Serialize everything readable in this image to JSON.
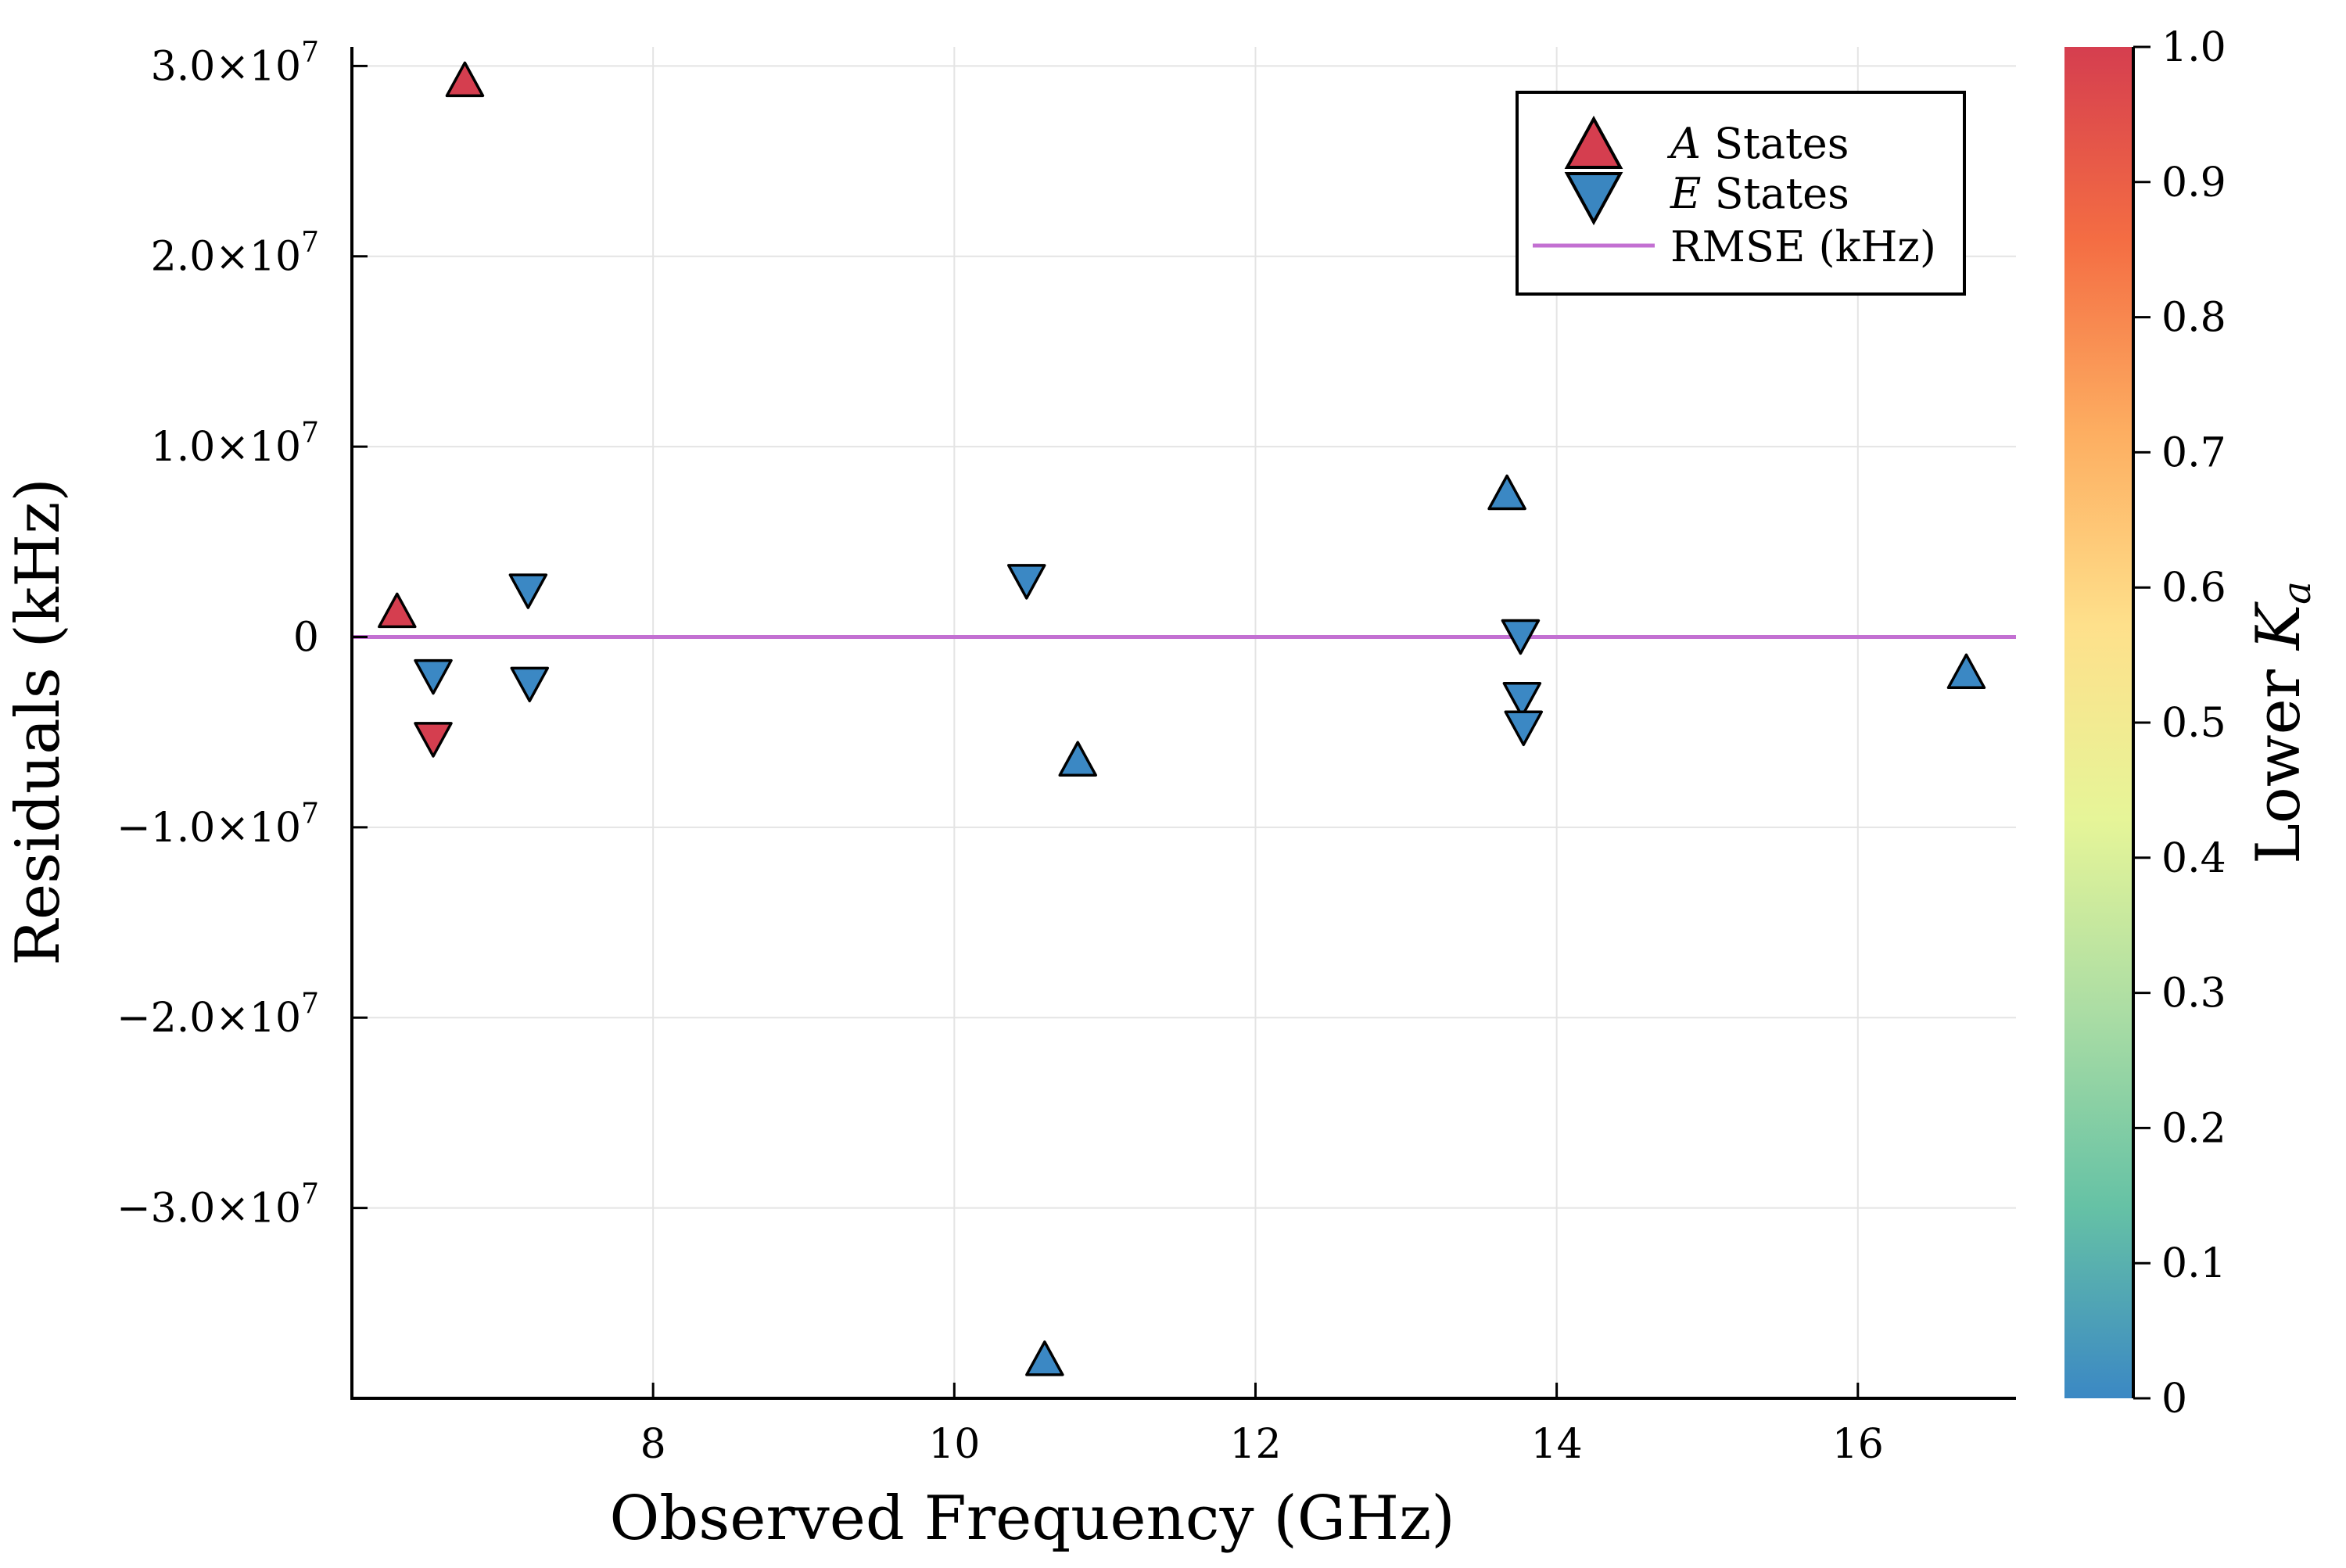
{
  "chart_data": {
    "type": "scatter",
    "title": "",
    "xlabel": "Observed Frequency (GHz)",
    "ylabel": "Residuals (kHz)",
    "xlim": [
      6.0,
      17.05
    ],
    "ylim": [
      -40000000,
      31000000
    ],
    "x_ticks": [
      8,
      10,
      12,
      14,
      16
    ],
    "x_tick_labels": [
      "8",
      "10",
      "12",
      "14",
      "16"
    ],
    "y_ticks": [
      -30000000,
      -20000000,
      -10000000,
      0,
      10000000,
      20000000,
      30000000
    ],
    "y_tick_labels": [
      {
        "mant": "−3.0×10",
        "exp": "7"
      },
      {
        "mant": "−2.0×10",
        "exp": "7"
      },
      {
        "mant": "−1.0×10",
        "exp": "7"
      },
      {
        "mant": "0",
        "exp": ""
      },
      {
        "mant": "1.0×10",
        "exp": "7"
      },
      {
        "mant": "2.0×10",
        "exp": "7"
      },
      {
        "mant": "3.0×10",
        "exp": "7"
      }
    ],
    "grid": true,
    "legend_position": "top-right",
    "legend": [
      {
        "label_var": "A",
        "label_rest": " States",
        "marker": "triangle-up"
      },
      {
        "label_var": "E",
        "label_rest": " States",
        "marker": "triangle-down"
      },
      {
        "label_var": "",
        "label_rest": "RMSE (kHz)",
        "marker": "line"
      }
    ],
    "rmse_value": 0,
    "series": [
      {
        "name": "A States",
        "marker": "triangle-up",
        "points": [
          {
            "x": 6.3,
            "y": 1400000,
            "ka": 1
          },
          {
            "x": 6.75,
            "y": 29300000,
            "ka": 1
          },
          {
            "x": 10.6,
            "y": -37900000,
            "ka": 0
          },
          {
            "x": 10.82,
            "y": -6400000,
            "ka": 0
          },
          {
            "x": 13.67,
            "y": 7600000,
            "ka": 0
          },
          {
            "x": 16.72,
            "y": -1800000,
            "ka": 0
          }
        ]
      },
      {
        "name": "E States",
        "marker": "triangle-down",
        "points": [
          {
            "x": 6.54,
            "y": -2100000,
            "ka": 0
          },
          {
            "x": 6.54,
            "y": -5400000,
            "ka": 1
          },
          {
            "x": 7.17,
            "y": 2400000,
            "ka": 0
          },
          {
            "x": 7.18,
            "y": -2500000,
            "ka": 0
          },
          {
            "x": 10.48,
            "y": 2900000,
            "ka": 0
          },
          {
            "x": 13.76,
            "y": 0,
            "ka": 0
          },
          {
            "x": 13.77,
            "y": -3300000,
            "ka": 0
          },
          {
            "x": 13.78,
            "y": -4800000,
            "ka": 0
          }
        ]
      }
    ],
    "colorbar": {
      "label_text": "Lower ",
      "label_var": "K",
      "label_sub": "a",
      "range": [
        0,
        1
      ],
      "ticks": [
        "0",
        "0.1",
        "0.2",
        "0.3",
        "0.4",
        "0.5",
        "0.6",
        "0.7",
        "0.8",
        "0.9",
        "1.0"
      ],
      "colors": [
        "#3b88c4",
        "#66c2a5",
        "#abdda4",
        "#e6f598",
        "#fee08b",
        "#fdae61",
        "#f46d43",
        "#d53e4f"
      ]
    },
    "colors": {
      "line": "#c370d2",
      "a_state": "#d53e4f",
      "e_state": "#3a86c0"
    }
  }
}
